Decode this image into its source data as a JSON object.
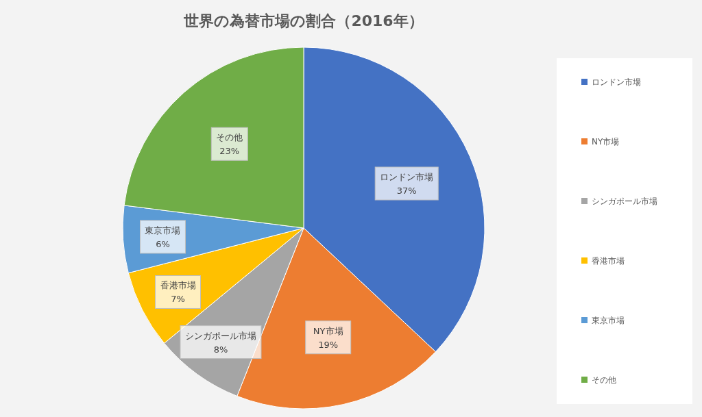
{
  "chart_data": {
    "type": "pie",
    "title": "世界の為替市場の割合（2016年）",
    "categories": [
      "ロンドン市場",
      "NY市場",
      "シンガポール市場",
      "香港市場",
      "東京市場",
      "その他"
    ],
    "values": [
      37,
      19,
      8,
      7,
      6,
      23
    ],
    "value_labels": [
      "37%",
      "19%",
      "8%",
      "7%",
      "6%",
      "23%"
    ],
    "colors": [
      "#4472c4",
      "#ed7d31",
      "#a5a5a5",
      "#ffc000",
      "#5b9bd5",
      "#70ad47"
    ],
    "legend": "right"
  }
}
